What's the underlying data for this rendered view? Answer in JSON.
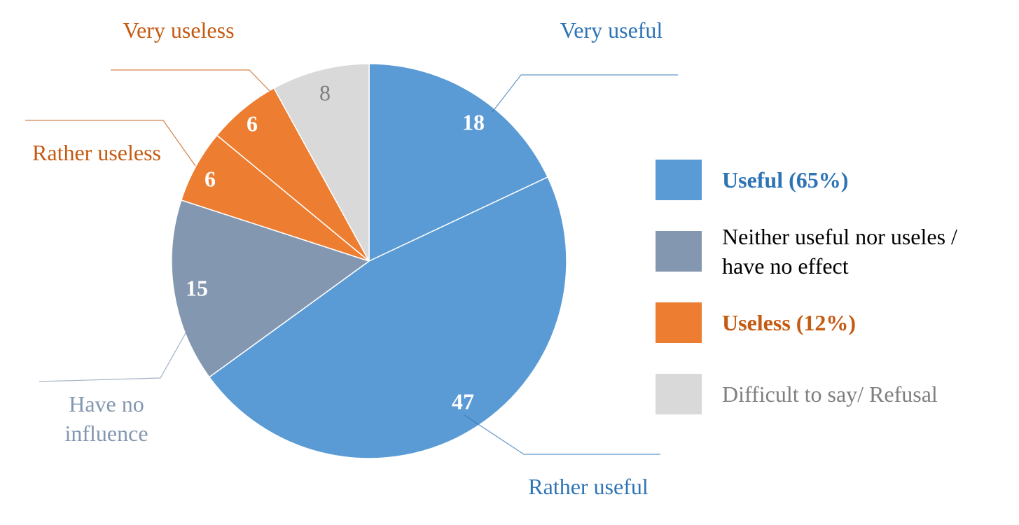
{
  "chart_data": {
    "type": "pie",
    "slices": [
      {
        "label": "Very useful",
        "value": 18,
        "color": "#5b9bd5",
        "label_color": "#2e74b5",
        "value_color": "#ffffff"
      },
      {
        "label": "Rather useful",
        "value": 47,
        "color": "#5b9bd5",
        "label_color": "#2e74b5",
        "value_color": "#ffffff"
      },
      {
        "label": "Have no\ninfluence",
        "value": 15,
        "color": "#8497b0",
        "label_color": "#8497b0",
        "value_color": "#ffffff"
      },
      {
        "label": "Rather useless",
        "value": 6,
        "color": "#ed7d31",
        "label_color": "#c55a11",
        "value_color": "#ffffff"
      },
      {
        "label": "Very useless",
        "value": 6,
        "color": "#ed7d31",
        "label_color": "#c55a11",
        "value_color": "#ffffff"
      },
      {
        "label": "",
        "value": 8,
        "color": "#d9d9d9",
        "label_color": "#7f7f7f",
        "value_color": "#7f7f7f"
      }
    ],
    "legend": {
      "placement": "right",
      "entries": [
        {
          "text": "Useful (65%)",
          "color": "#5b9bd5",
          "text_color": "#2e74b5",
          "bold": true
        },
        {
          "text": "Neither useful nor useles /\nhave no effect",
          "color": "#8497b0",
          "text_color": "#000000",
          "bold": false
        },
        {
          "text": "Useless (12%)",
          "color": "#ed7d31",
          "text_color": "#c55a11",
          "bold": true
        },
        {
          "text": "Difficult to say/ Refusal",
          "color": "#d9d9d9",
          "text_color": "#7f7f7f",
          "bold": false
        }
      ]
    }
  }
}
